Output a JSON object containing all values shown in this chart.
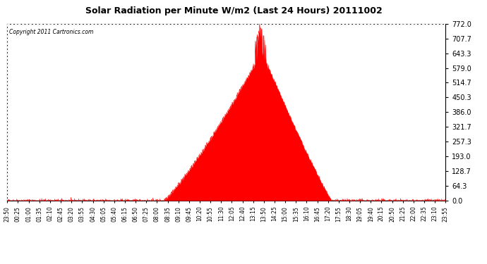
{
  "title": "Solar Radiation per Minute W/m2 (Last 24 Hours) 20111002",
  "copyright": "Copyright 2011 Cartronics.com",
  "yticks": [
    0.0,
    64.3,
    128.7,
    193.0,
    257.3,
    321.7,
    386.0,
    450.3,
    514.7,
    579.0,
    643.3,
    707.7,
    772.0
  ],
  "ymin": 0.0,
  "ymax": 772.0,
  "fill_color": "#FF0000",
  "line_color": "#FF0000",
  "bg_color": "#FFFFFF",
  "plot_bg_color": "#FFFFFF",
  "grid_color": "#AAAAAA",
  "dashed_line_color": "#FF0000",
  "x_labels": [
    "23:50",
    "00:25",
    "01:00",
    "01:35",
    "02:10",
    "02:45",
    "03:20",
    "03:55",
    "04:30",
    "05:05",
    "05:40",
    "06:15",
    "06:50",
    "07:25",
    "08:00",
    "08:35",
    "09:10",
    "09:45",
    "10:20",
    "10:55",
    "11:30",
    "12:05",
    "12:40",
    "13:15",
    "13:50",
    "14:25",
    "15:00",
    "15:35",
    "16:10",
    "16:45",
    "17:20",
    "17:55",
    "18:30",
    "19:05",
    "19:40",
    "20:15",
    "20:50",
    "21:25",
    "22:00",
    "22:35",
    "23:10",
    "23:55"
  ],
  "num_points": 1440,
  "sunrise_min": 500,
  "sunset_min": 1065,
  "peak_min": 835,
  "peak_base_val": 648,
  "peak_spike_val": 772
}
